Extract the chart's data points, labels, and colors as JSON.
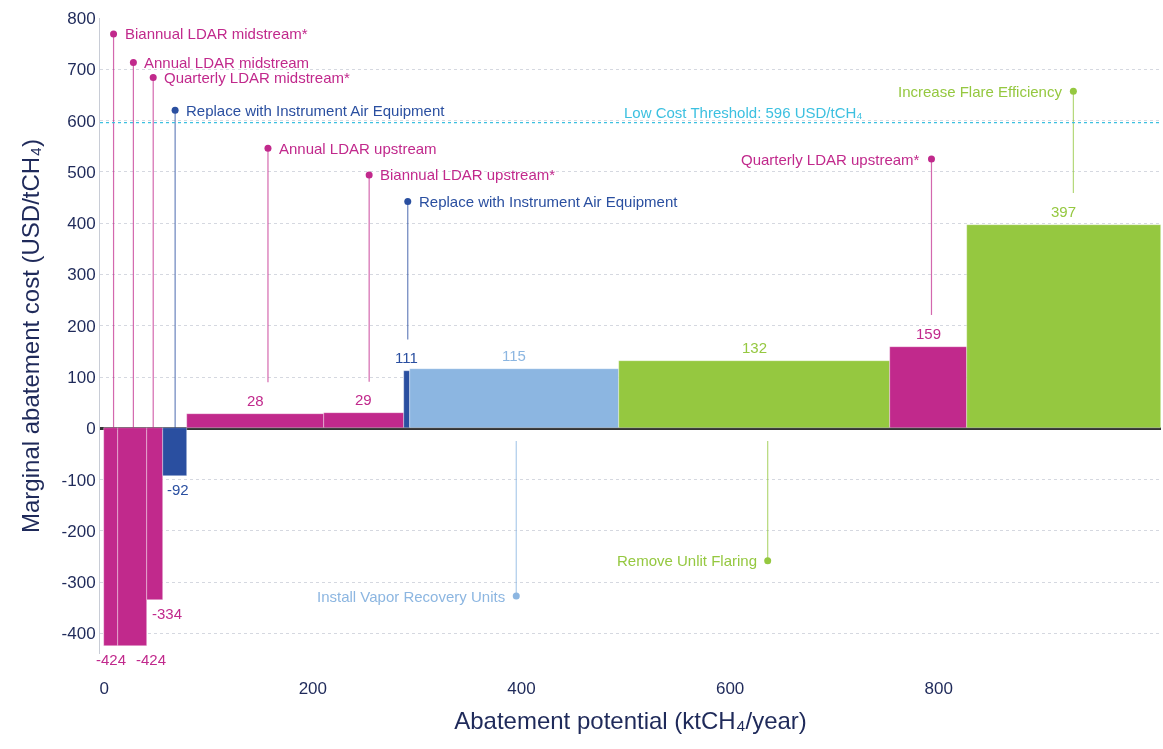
{
  "chart_data": {
    "type": "histogram",
    "xlabel": "Abatement potential (ktCH₄/year)",
    "ylabel": "Marginal abatement cost (USD/tCH₄)",
    "bins": [
      0,
      13,
      41,
      56,
      79,
      211,
      287,
      293,
      493,
      753,
      827,
      1013
    ],
    "values": [
      -424,
      -424,
      -334,
      -92,
      28,
      29,
      111,
      115,
      132,
      159,
      397
    ],
    "colors": [
      "#c1298c",
      "#c1298c",
      "#c1298c",
      "#2a4fa0",
      "#c1298c",
      "#c1298c",
      "#2a4fa0",
      "#8cb6e1",
      "#95c840",
      "#c1298c",
      "#95c840"
    ],
    "data_labels": true,
    "xlim": [
      -4,
      1013
    ],
    "xticks": [
      0,
      200,
      400,
      600,
      800
    ],
    "ylim": [
      -440,
      800
    ],
    "yticks": [
      -400,
      -300,
      -200,
      -100,
      0,
      100,
      200,
      300,
      400,
      500,
      600,
      700,
      800
    ],
    "grid": "y",
    "ref_lines": [
      {
        "axis": "y",
        "value": 596,
        "label": "Low Cost Threshold: 596 USD/tCH₄",
        "color": "#3cc0e0",
        "line_style": "dotted"
      }
    ],
    "annotations": [
      {
        "text": "Biannual LDAR midstream*",
        "x": 9,
        "y": 769
      },
      {
        "text": "Annual LDAR midstream",
        "x": 28,
        "y": 713
      },
      {
        "text": "Quarterly LDAR midstream*",
        "x": 47,
        "y": 684
      },
      {
        "text": "Replace with Instrument Air Equipment",
        "x": 68,
        "y": 620
      },
      {
        "text": "Annual LDAR upstream",
        "x": 157,
        "y": 546
      },
      {
        "text": "Biannual LDAR upstream*",
        "x": 254,
        "y": 494
      },
      {
        "text": "Replace with Instrument Air Equipment",
        "x": 291,
        "y": 442
      },
      {
        "text": "Quarterly LDAR upstream*",
        "x": 793,
        "y": 525
      },
      {
        "text": "Increase Flare Efficiency",
        "x": 929,
        "y": 657
      },
      {
        "text": "Remove Unlit Flaring",
        "x": 636,
        "y": -258
      },
      {
        "text": "Install Vapor Recovery Units",
        "x": 395,
        "y": -327
      }
    ]
  }
}
